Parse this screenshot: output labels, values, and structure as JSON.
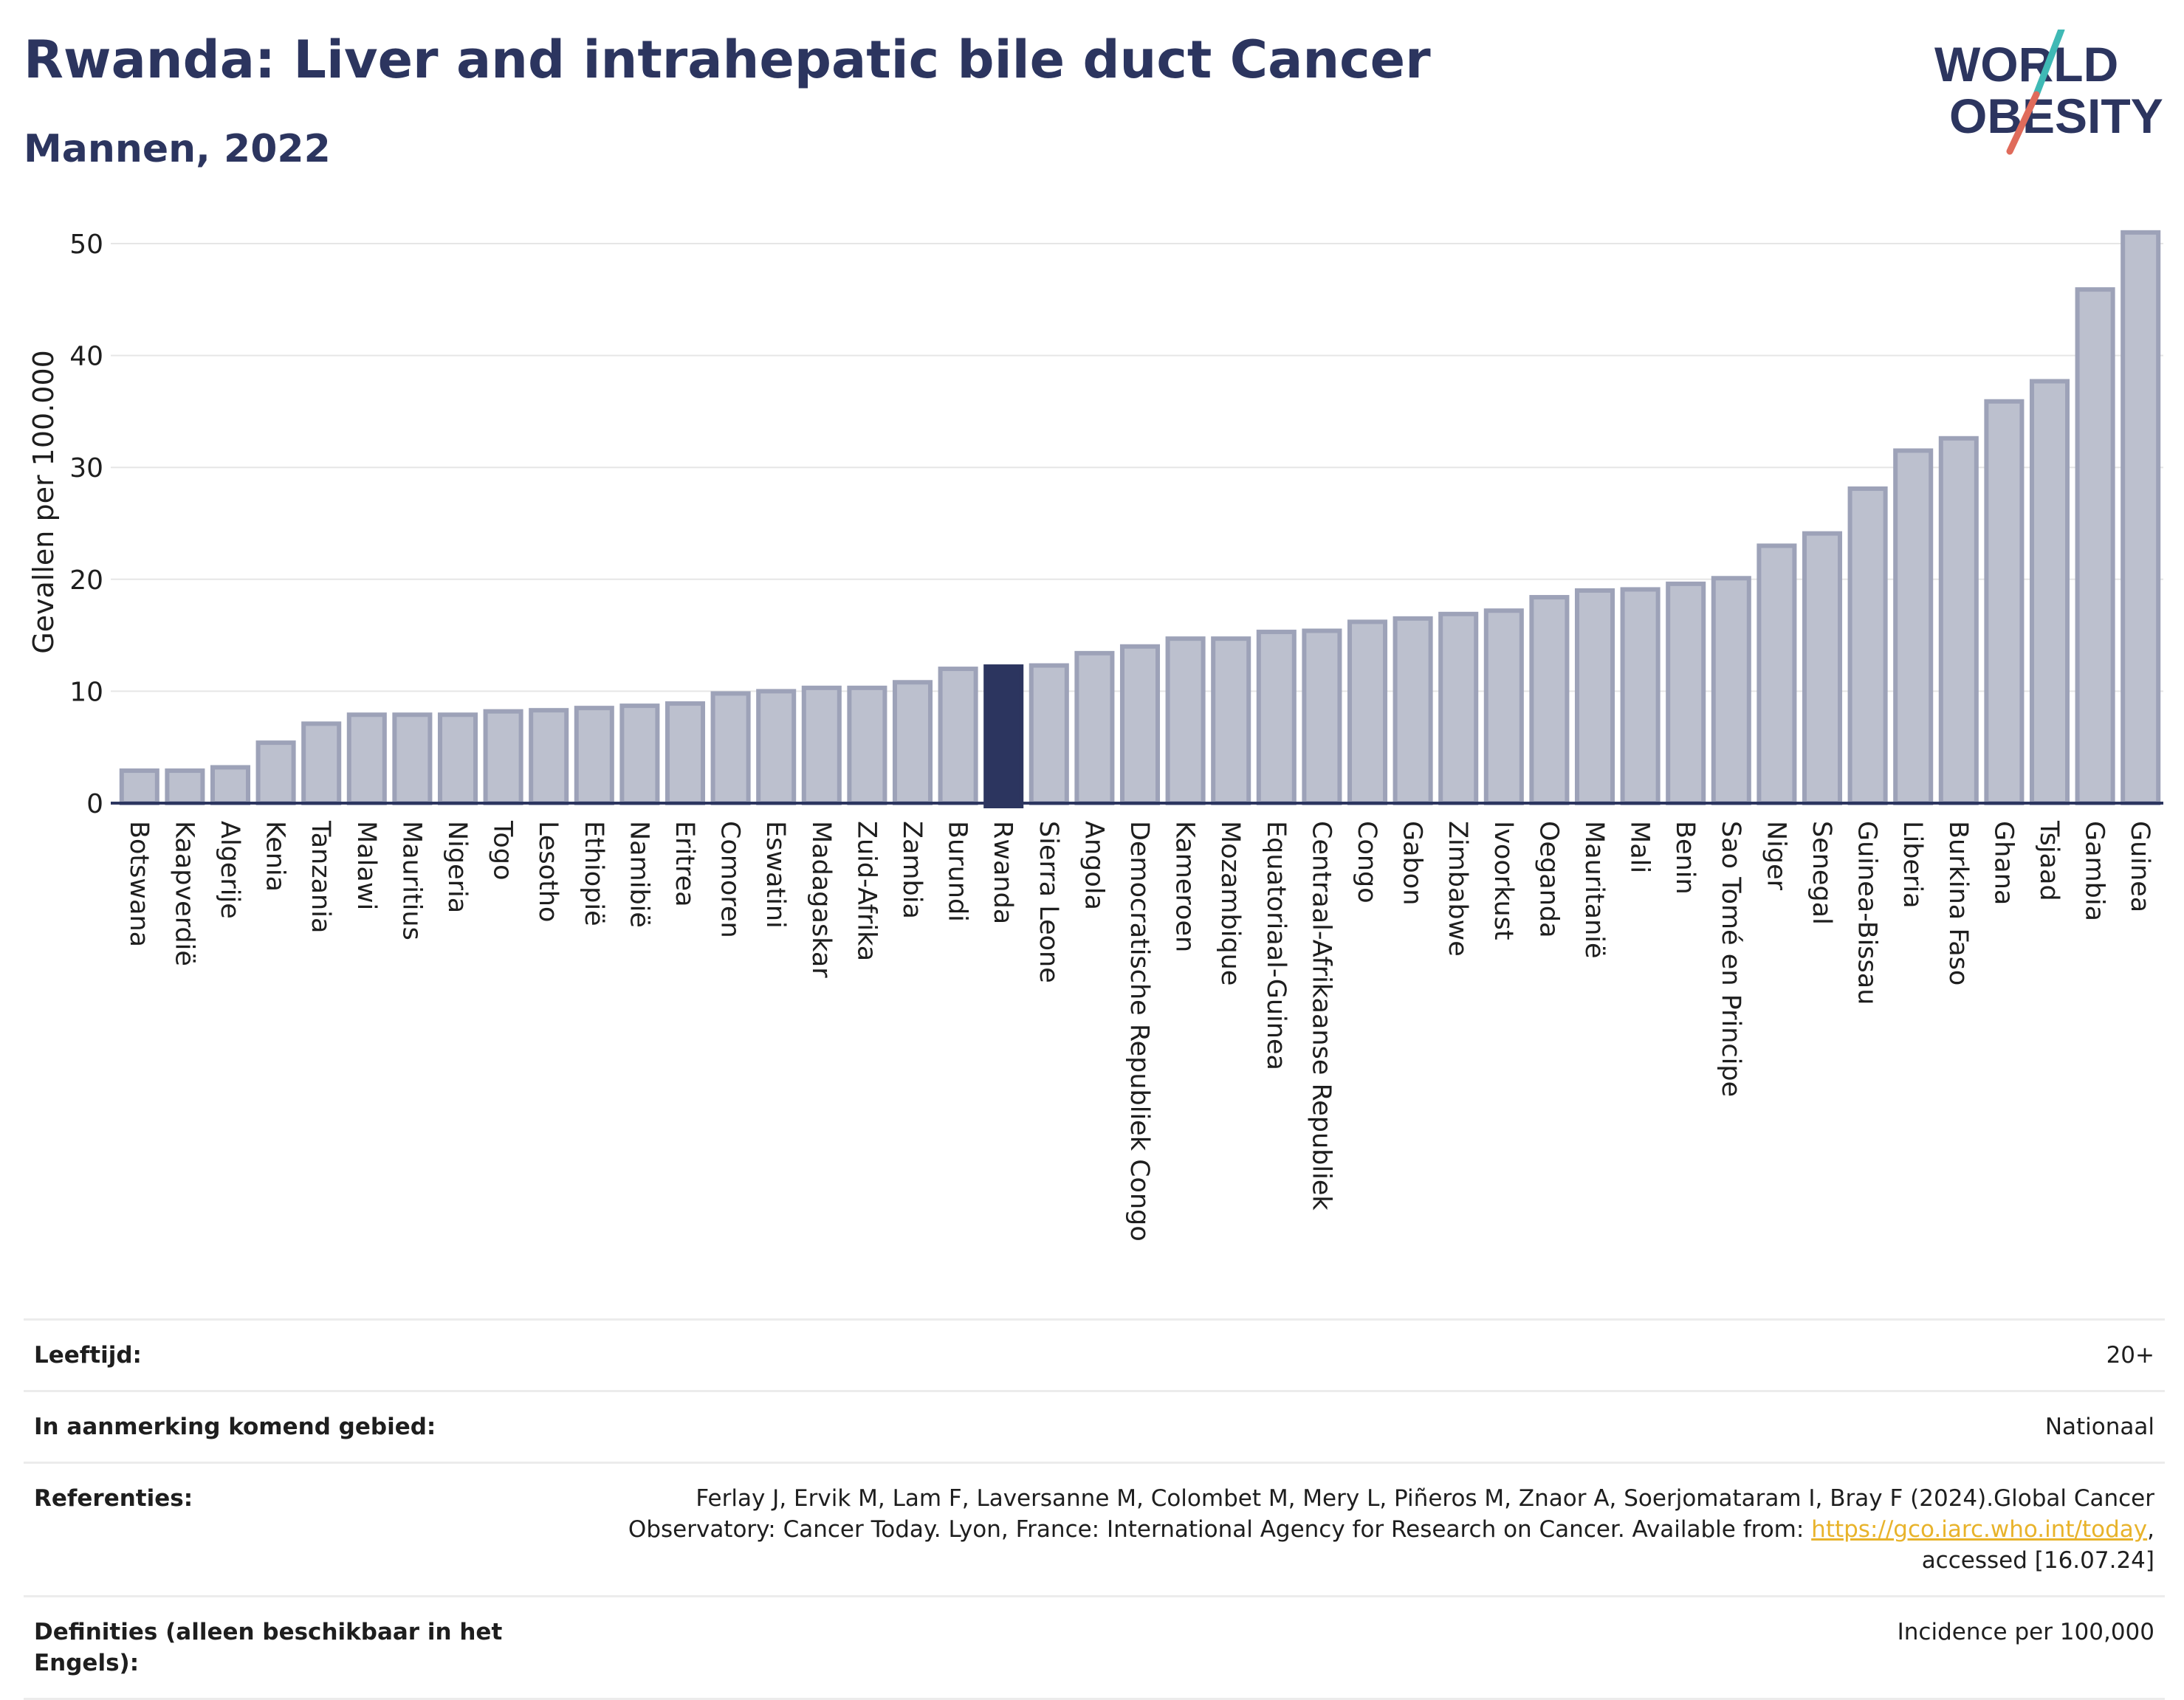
{
  "header": {
    "title": "Rwanda: Liver and intrahepatic bile duct Cancer",
    "subtitle": "Mannen, 2022",
    "logo_line1": "WORLD",
    "logo_line2": "OBESITY"
  },
  "colors": {
    "bar": "#bcc0ce",
    "bar_stroke": "#9da2b8",
    "highlight": "#2c355f",
    "title": "#2c355f",
    "grid": "#e6e6e6",
    "logo_slash_teal": "#3fb9b5",
    "logo_slash_red": "#e06b5b",
    "link": "#e8b32b"
  },
  "chart_data": {
    "type": "bar",
    "ylabel": "Gevallen per 100.000",
    "ylim": [
      0,
      52
    ],
    "yticks": [
      0,
      10,
      20,
      30,
      40,
      50
    ],
    "grid": true,
    "highlight": "Rwanda",
    "categories": [
      "Botswana",
      "Kaapverdië",
      "Algerije",
      "Kenia",
      "Tanzania",
      "Malawi",
      "Mauritius",
      "Nigeria",
      "Togo",
      "Lesotho",
      "Ethiopië",
      "Namibië",
      "Eritrea",
      "Comoren",
      "Eswatini",
      "Madagaskar",
      "Zuid-Afrika",
      "Zambia",
      "Burundi",
      "Rwanda",
      "Sierra Leone",
      "Angola",
      "Democratische Republiek Congo",
      "Kameroen",
      "Mozambique",
      "Equatoriaal-Guinea",
      "Centraal-Afrikaanse Republiek",
      "Congo",
      "Gabon",
      "Zimbabwe",
      "Ivoorkust",
      "Oeganda",
      "Mauritanië",
      "Mali",
      "Benin",
      "Sao Tomé en Principe",
      "Niger",
      "Senegal",
      "Guinea-Bissau",
      "Liberia",
      "Burkina Faso",
      "Ghana",
      "Tsjaad",
      "Gambia",
      "Guinea"
    ],
    "values": [
      2.9,
      2.9,
      3.2,
      5.4,
      7.1,
      7.9,
      7.9,
      7.9,
      8.2,
      8.3,
      8.5,
      8.7,
      8.9,
      9.8,
      10.0,
      10.3,
      10.3,
      10.8,
      12.0,
      12.2,
      12.3,
      13.4,
      14.0,
      14.7,
      14.7,
      15.3,
      15.4,
      16.2,
      16.5,
      16.9,
      17.2,
      18.4,
      19.0,
      19.1,
      19.6,
      20.1,
      23.0,
      24.1,
      28.1,
      31.5,
      32.6,
      35.9,
      37.7,
      45.9,
      51.0
    ]
  },
  "info": {
    "age_label": "Leeftijd:",
    "age_value": "20+",
    "area_label": "In aanmerking komend gebied:",
    "area_value": "Nationaal",
    "ref_label": "Referenties:",
    "ref_text_1": "Ferlay J, Ervik M, Lam F, Laversanne M, Colombet M, Mery L, Piñeros M, Znaor A, Soerjomataram I, Bray F (2024).Global Cancer Observatory: Cancer Today. Lyon, France: International Agency for Research on Cancer. Available from: ",
    "ref_link": "https://gco.iarc.who.int/today",
    "ref_text_2": ", accessed [16.07.24]",
    "def_label": "Definities (alleen beschikbaar in het Engels):",
    "def_value": "Incidence per 100,000"
  }
}
